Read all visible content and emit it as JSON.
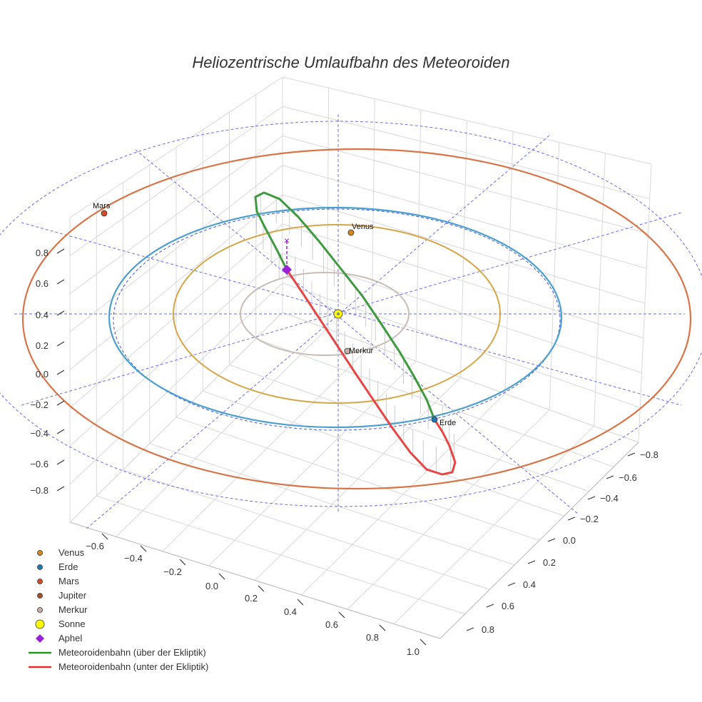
{
  "chart_data": {
    "type": "scatter3d",
    "title": "Heliozentrische Umlaufbahn des Meteoroiden",
    "axes": {
      "x": {
        "range": [
          -0.6,
          1.0
        ],
        "ticks": [
          "−0.6",
          "−0.4",
          "−0.2",
          "0.0",
          "0.2",
          "0.4",
          "0.6",
          "0.8",
          "1.0"
        ]
      },
      "y": {
        "range": [
          -0.8,
          0.8
        ],
        "ticks": [
          "−0.8",
          "−0.6",
          "−0.4",
          "−0.2",
          "0.0",
          "0.2",
          "0.4",
          "0.6",
          "0.8"
        ]
      },
      "z": {
        "range": [
          -0.8,
          0.8
        ],
        "ticks": [
          "−0.8",
          "−0.6",
          "−0.4",
          "−0.2",
          "0.0",
          "0.2",
          "0.4",
          "0.6",
          "0.8"
        ]
      }
    },
    "orbits": [
      {
        "name": "Merkur",
        "radius_au": 0.387,
        "color": "#c8bcb6"
      },
      {
        "name": "Venus",
        "radius_au": 0.723,
        "color": "#d6a64a"
      },
      {
        "name": "Erde",
        "radius_au": 1.0,
        "color": "#4a9fd0"
      },
      {
        "name": "Mars",
        "radius_au": 1.524,
        "color": "#d97448"
      }
    ],
    "planet_labels": [
      {
        "name": "Mars",
        "text": "Mars",
        "color": "#d24b22"
      },
      {
        "name": "Venus",
        "text": "Venus",
        "color": "#d28a1e"
      },
      {
        "name": "Erde",
        "text": "Erde",
        "color": "#2a6fb8"
      },
      {
        "name": "Merkur",
        "text": "Merkur",
        "color": "#c4b0a8"
      }
    ],
    "meteoroid": {
      "above_color": "#3e9a3e",
      "below_color": "#e84545",
      "aphel_color": "#9a22d6"
    },
    "legend": [
      {
        "label": "Venus",
        "marker": "dot",
        "color": "#d28a1e"
      },
      {
        "label": "Erde",
        "marker": "dot",
        "color": "#1f77b4"
      },
      {
        "label": "Mars",
        "marker": "dot",
        "color": "#d24b22"
      },
      {
        "label": "Jupiter",
        "marker": "dot",
        "color": "#a0522d"
      },
      {
        "label": "Merkur",
        "marker": "dot",
        "color": "#c4b0a8"
      },
      {
        "label": "Sonne",
        "marker": "big-dot",
        "color": "#ffff00"
      },
      {
        "label": "Aphel",
        "marker": "diamond",
        "color": "#9a22d6"
      },
      {
        "label": "Meteoroidenbahn (über der Ekliptik)",
        "marker": "line",
        "color": "#1f9a1f"
      },
      {
        "label": "Meteoroidenbahn (unter der Ekliptik)",
        "marker": "line",
        "color": "#e82c2c"
      }
    ]
  }
}
